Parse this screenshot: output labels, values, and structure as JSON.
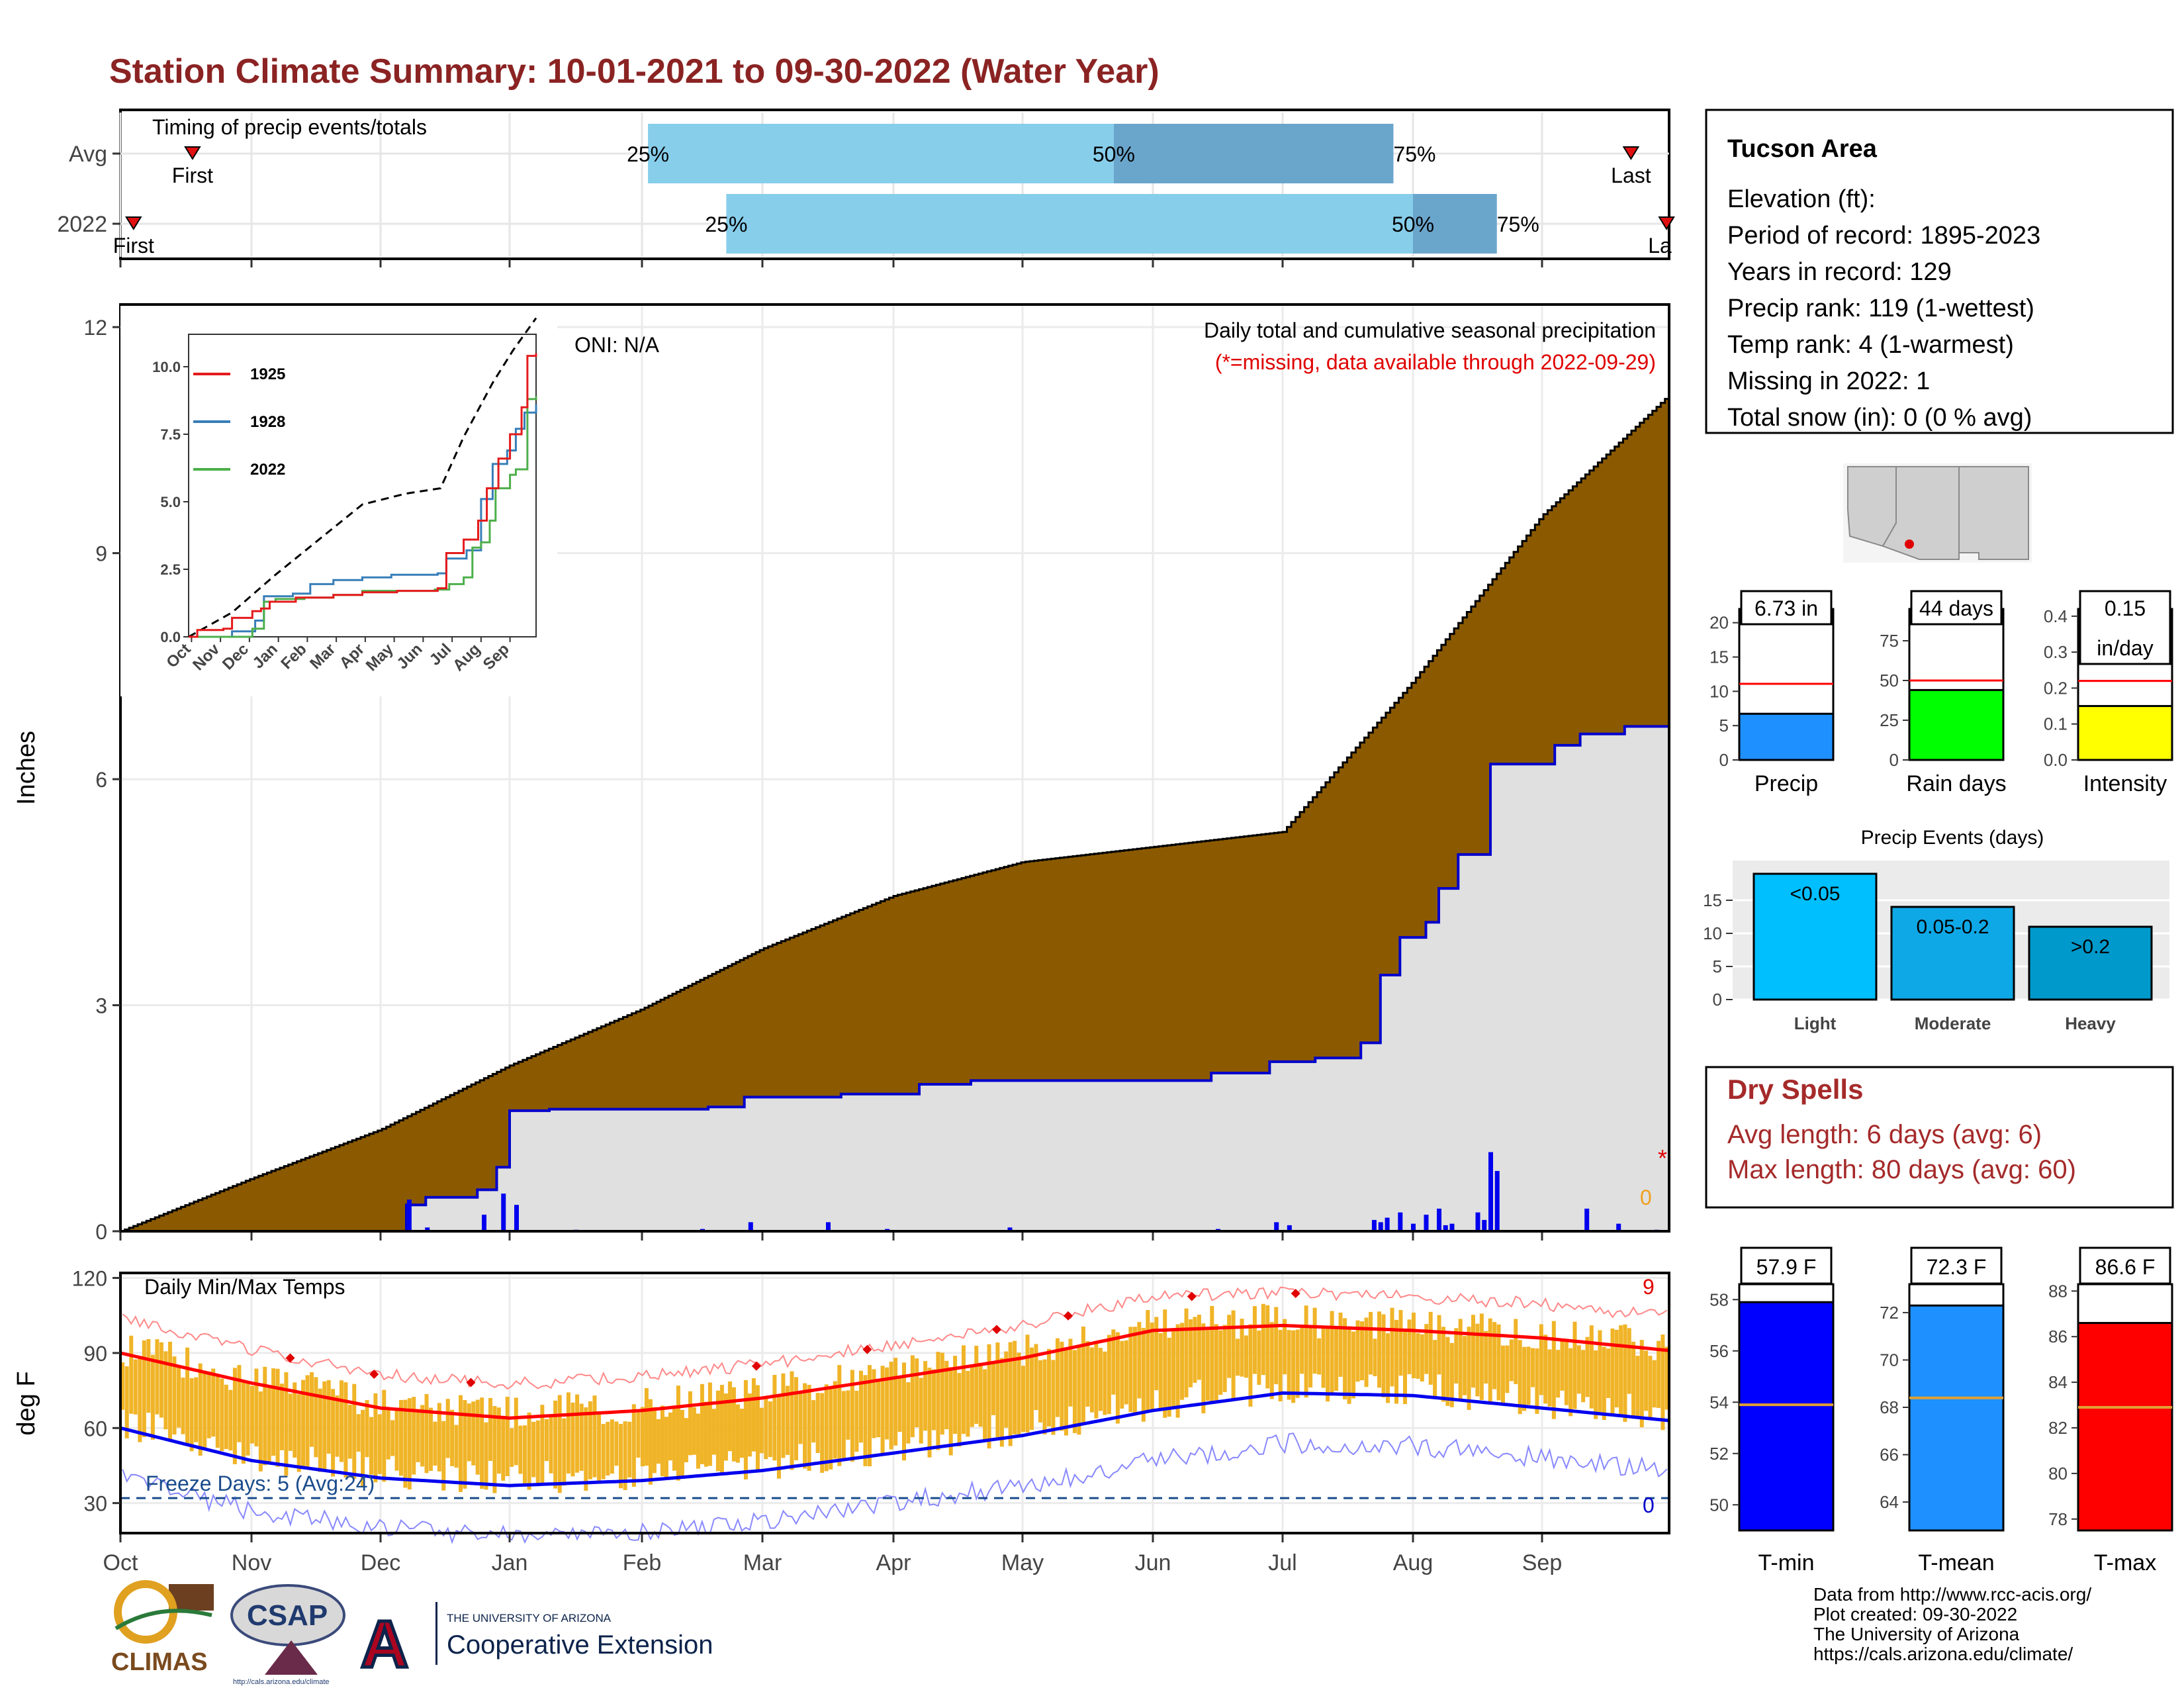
{
  "page": {
    "title": "Station Climate Summary: 10-01-2021 to 09-30-2022 (Water Year)"
  },
  "month_labels": [
    "Oct",
    "Nov",
    "Dec",
    "Jan",
    "Feb",
    "Mar",
    "Apr",
    "May",
    "Jun",
    "Jul",
    "Aug",
    "Sep"
  ],
  "timing_panel": {
    "label": "Timing of precip events/totals",
    "rows": [
      {
        "label": "Avg",
        "first_month": 0.55,
        "last_month": 11.7,
        "p25": 4.05,
        "p50": 7.7,
        "p75": 9.85,
        "first_label": "First",
        "last_label": "Last",
        "p25_label": "25%",
        "p50_label": "50%",
        "p75_label": "75%"
      },
      {
        "label": "2022",
        "first_month": 0.1,
        "last_month": 11.98,
        "p25": 4.7,
        "p50": 10.0,
        "p75": 10.65,
        "first_label": "First",
        "last_label": "La",
        "p25_label": "25%",
        "p50_label": "50%",
        "p75_label": "75%"
      }
    ],
    "colors": {
      "light": "#87ceeb",
      "dark": "#6aa5cc",
      "marker": "#e01010"
    }
  },
  "precip_panel": {
    "ylabel": "Inches",
    "yticks": [
      "0",
      "3",
      "6",
      "9",
      "12"
    ],
    "title_line1": "Daily total and cumulative seasonal precipitation",
    "title_line2": "(*=missing, data available through 2022-09-29)",
    "oni": "ONI: N/A",
    "missing_star": "*",
    "missing_count": "0"
  },
  "inset": {
    "yticks": [
      "0.0",
      "2.5",
      "5.0",
      "7.5",
      "10.0"
    ],
    "xticks": [
      "Oct",
      "Nov",
      "Dec",
      "Jan",
      "Feb",
      "Mar",
      "Apr",
      "May",
      "Jun",
      "Jul",
      "Aug",
      "Sep"
    ],
    "legend": [
      {
        "name": "1925",
        "color": "#e41a1c"
      },
      {
        "name": "1928",
        "color": "#377eb8"
      },
      {
        "name": "2022",
        "color": "#4daf4a"
      }
    ]
  },
  "temp_panel": {
    "ylabel": "deg F",
    "yticks": [
      "30",
      "60",
      "90",
      "120"
    ],
    "label": "Daily Min/Max Temps",
    "freeze_text": "Freeze Days: 5 (Avg:24)",
    "top_count": "9",
    "bottom_count": "0"
  },
  "info_box": {
    "title": "Tucson Area",
    "lines": [
      "Elevation (ft):",
      "Period of record: 1895-2023",
      "Years in record: 129",
      "Precip rank: 119 (1-wettest)",
      "Temp rank: 4 (1-warmest)",
      "Missing in 2022: 1",
      "Total snow (in): 0 (0 % avg)"
    ]
  },
  "summary_bars": [
    {
      "label": "Precip",
      "value_text": "6.73 in",
      "value": 6.73,
      "avg": 11.1,
      "ymax": 22,
      "ticks": [
        "0",
        "5",
        "10",
        "15",
        "20"
      ],
      "tickvals": [
        0,
        5,
        10,
        15,
        20
      ],
      "color": "#1e90ff"
    },
    {
      "label": "Rain days",
      "value_text": "44 days",
      "value": 44,
      "avg": 50,
      "ymax": 95,
      "ticks": [
        "0",
        "25",
        "50",
        "75"
      ],
      "tickvals": [
        0,
        25,
        50,
        75
      ],
      "color": "#00ff00"
    },
    {
      "label": "Intensity",
      "value_text": "0.15",
      "value_text2": "in/day",
      "value": 0.15,
      "avg": 0.22,
      "ymax": 0.42,
      "ticks": [
        "0.0",
        "0.1",
        "0.2",
        "0.3",
        "0.4"
      ],
      "tickvals": [
        0,
        0.1,
        0.2,
        0.3,
        0.4
      ],
      "color": "#ffff00"
    }
  ],
  "events_chart": {
    "title": "Precip Events (days)",
    "categories": [
      "Light",
      "Moderate",
      "Heavy"
    ],
    "bar_labels": [
      "<0.05",
      "0.05-0.2",
      ">0.2"
    ],
    "values": [
      19,
      14,
      11
    ],
    "yticks": [
      "0",
      "5",
      "10",
      "15"
    ],
    "colors": [
      "#00bfff",
      "#0fa8e6",
      "#0099cc"
    ]
  },
  "dry_spells": {
    "title": "Dry Spells",
    "line1": "Avg length: 6 days (avg: 6)",
    "line2": "Max length: 80 days (avg: 60)"
  },
  "temp_bars": [
    {
      "label": "T-min",
      "value_text": "57.9 F",
      "value": 57.9,
      "avg": 53.9,
      "ymin": 49,
      "ymax": 58.6,
      "ticks": [
        "50",
        "52",
        "54",
        "56",
        "58"
      ],
      "tickvals": [
        50,
        52,
        54,
        56,
        58
      ],
      "color": "#0000ff"
    },
    {
      "label": "T-mean",
      "value_text": "72.3 F",
      "value": 72.3,
      "avg": 68.4,
      "ymin": 62.8,
      "ymax": 73.2,
      "ticks": [
        "64",
        "66",
        "68",
        "70",
        "72"
      ],
      "tickvals": [
        64,
        66,
        68,
        70,
        72
      ],
      "color": "#1e90ff"
    },
    {
      "label": "T-max",
      "value_text": "86.6 F",
      "value": 86.6,
      "avg": 82.9,
      "ymin": 77.5,
      "ymax": 88.3,
      "ticks": [
        "78",
        "80",
        "82",
        "84",
        "86",
        "88"
      ],
      "tickvals": [
        78,
        80,
        82,
        84,
        86,
        88
      ],
      "color": "#ff0000"
    }
  ],
  "footer": {
    "lines": [
      "Data from http://www.rcc-acis.org/",
      "Plot created: 09-30-2022",
      "The University of Arizona",
      "https://cals.arizona.edu/climate/"
    ],
    "logo_climas": "CLIMAS",
    "logo_csap": "CSAP",
    "logo_csap_url": "http://cals.arizona.edu/climate",
    "logo_ua_small": "THE UNIVERSITY OF ARIZONA",
    "logo_ua_big": "Cooperative Extension",
    "logo_ua_letter": "A"
  },
  "chart_data": [
    {
      "type": "area",
      "title": "Daily total and cumulative seasonal precipitation",
      "ylabel": "Inches",
      "ylim": [
        0,
        12
      ],
      "x": [
        "Oct",
        "Nov",
        "Dec",
        "Jan",
        "Feb",
        "Mar",
        "Apr",
        "May",
        "Jun",
        "Jul",
        "Aug",
        "Sep"
      ],
      "series": [
        {
          "name": "Avg cumulative",
          "values": [
            0.0,
            0.7,
            1.35,
            2.2,
            2.95,
            3.75,
            4.45,
            4.9,
            5.1,
            5.3,
            7.3,
            9.5
          ],
          "end_value": 11.1
        },
        {
          "name": "2022 cumulative",
          "values": [
            0.0,
            0.0,
            0.0,
            1.6,
            1.7,
            1.85,
            2.0,
            2.0,
            2.0,
            2.3,
            4.0,
            6.2
          ],
          "end_value": 6.73
        }
      ],
      "grid": true
    },
    {
      "type": "line",
      "title": "Daily Min/Max Temps",
      "ylabel": "deg F",
      "ylim": [
        18,
        122
      ],
      "x": [
        "Oct",
        "Nov",
        "Dec",
        "Jan",
        "Feb",
        "Mar",
        "Apr",
        "May",
        "Jun",
        "Jul",
        "Aug",
        "Sep"
      ],
      "series": [
        {
          "name": "Avg max",
          "values": [
            90,
            78,
            68,
            64,
            67,
            72,
            80,
            88,
            99,
            101,
            99,
            96
          ]
        },
        {
          "name": "Avg min",
          "values": [
            60,
            47,
            40,
            37,
            39,
            43,
            50,
            57,
            67,
            74,
            73,
            68
          ]
        }
      ],
      "freeze_line": 32
    }
  ]
}
